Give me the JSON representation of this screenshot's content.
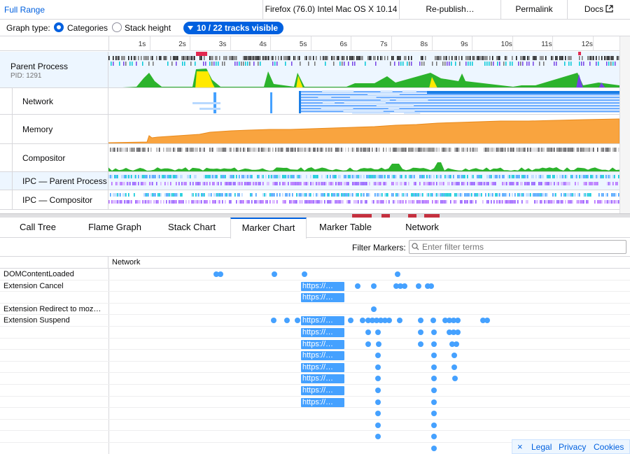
{
  "topbar": {
    "range_label": "Full Range",
    "buttons": [
      "Firefox (76.0) Intel Mac OS X 10.14",
      "Re-publish…",
      "Permalink",
      "Docs"
    ]
  },
  "settings": {
    "graph_type_label": "Graph type:",
    "options": [
      "Categories",
      "Stack height"
    ],
    "selected": "Categories",
    "tracks_visible": "10 / 22 tracks visible"
  },
  "timeline": {
    "ticks": [
      "1s",
      "2s",
      "3s",
      "4s",
      "5s",
      "6s",
      "7s",
      "8s",
      "9s",
      "10s",
      "11s",
      "12s"
    ],
    "tracks": {
      "parent_process": {
        "name": "Parent Process",
        "pid": "PID: 1291"
      },
      "network": "Network",
      "memory": "Memory",
      "compositor": "Compositor",
      "ipc_parent": "IPC — Parent Process",
      "ipc_compositor": "IPC — Compositor"
    }
  },
  "tabs": [
    "Call Tree",
    "Flame Graph",
    "Stack Chart",
    "Marker Chart",
    "Marker Table",
    "Network"
  ],
  "active_tab": "Marker Chart",
  "filter": {
    "label": "Filter Markers:",
    "placeholder": "Enter filter terms"
  },
  "marker_chart": {
    "category": "Network",
    "rows": [
      "DOMContentLoaded",
      "Extension Cancel",
      "",
      "Extension Redirect to moz…",
      "Extension Suspend",
      "",
      "",
      "",
      "",
      "",
      "",
      "",
      "",
      "",
      "",
      ""
    ],
    "bar_label": "https://…"
  },
  "footer": {
    "close": "×",
    "links": [
      "Legal",
      "Privacy",
      "Cookies"
    ]
  },
  "colors": {
    "accent": "#0060df",
    "marker": "#45a1ff",
    "memory": "#f9a43f",
    "compositor": "#2cb32c"
  }
}
